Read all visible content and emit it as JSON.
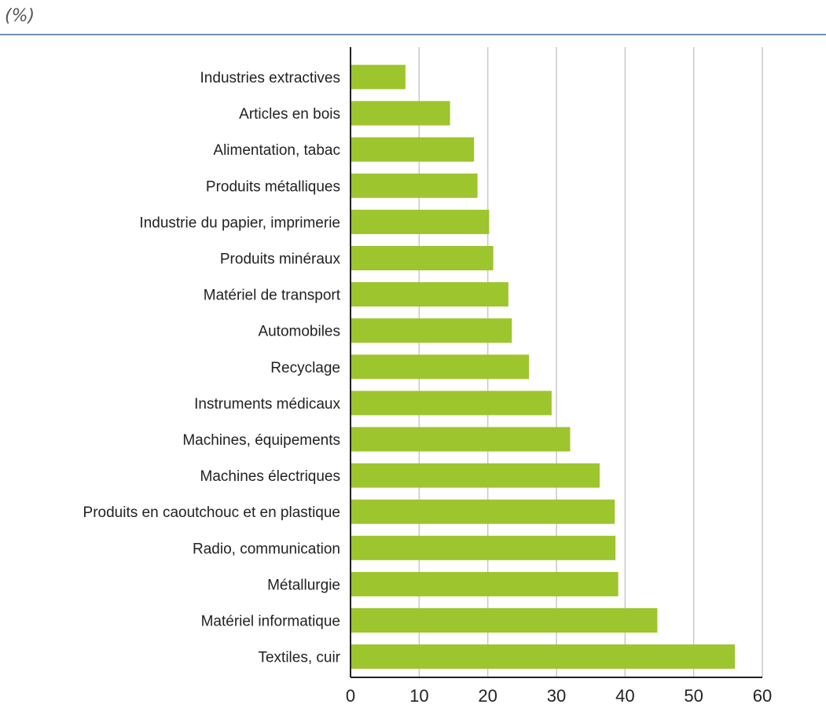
{
  "header": {
    "unit_label": "(%)"
  },
  "colors": {
    "bar": "#9dc52d",
    "grid": "#c8c8c8",
    "axis": "#222222",
    "rule": "#6f8fb2"
  },
  "chart_data": {
    "type": "bar",
    "orientation": "horizontal",
    "title": "",
    "xlabel": "",
    "ylabel": "",
    "unit": "(%)",
    "categories": [
      "Industries extractives",
      "Articles en bois",
      "Alimentation, tabac",
      "Produits métalliques",
      "Industrie du papier, imprimerie",
      "Produits minéraux",
      "Matériel de transport",
      "Automobiles",
      "Recyclage",
      "Instruments médicaux",
      "Machines, équipements",
      "Machines électriques",
      "Produits en caoutchouc et en plastique",
      "Radio, communication",
      "Métallurgie",
      "Matériel informatique",
      "Textiles, cuir"
    ],
    "values": [
      8,
      14.5,
      18,
      18.5,
      20.2,
      20.8,
      23,
      23.5,
      26,
      29.3,
      32,
      36.3,
      38.5,
      38.6,
      39,
      44.7,
      56
    ],
    "xlim": [
      0,
      60
    ],
    "xticks": [
      0,
      10,
      20,
      30,
      40,
      50,
      60
    ],
    "grid": true,
    "legend": "none"
  }
}
